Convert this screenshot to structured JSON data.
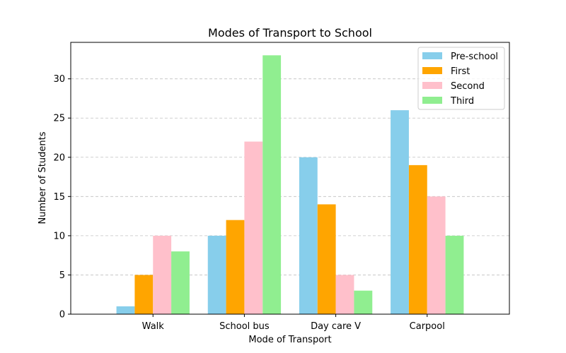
{
  "chart_data": {
    "type": "bar",
    "title": "Modes of Transport to School",
    "xlabel": "Mode of Transport",
    "ylabel": "Number of Students",
    "categories": [
      "Walk",
      "School bus",
      "Day care V",
      "Carpool"
    ],
    "series": [
      {
        "name": "Pre-school",
        "color": "#87ceeb",
        "values": [
          1,
          10,
          20,
          26
        ]
      },
      {
        "name": "First",
        "color": "#ffa500",
        "values": [
          5,
          12,
          14,
          19
        ]
      },
      {
        "name": "Second",
        "color": "#ffc0cb",
        "values": [
          10,
          22,
          5,
          15
        ]
      },
      {
        "name": "Third",
        "color": "#90ee90",
        "values": [
          8,
          33,
          3,
          10
        ]
      }
    ],
    "ylim": [
      0,
      34.65
    ],
    "yticks": [
      0,
      5,
      10,
      15,
      20,
      25,
      30
    ],
    "grid": "y-dashed",
    "legend_position": "top-right"
  }
}
